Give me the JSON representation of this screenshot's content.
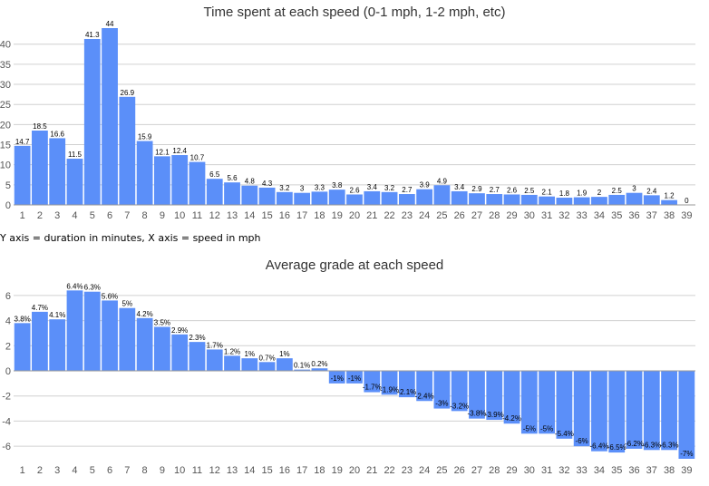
{
  "chart_data": [
    {
      "type": "bar",
      "title": "Time spent at each speed (0-1 mph, 1-2 mph, etc)",
      "categories": [
        "1",
        "2",
        "3",
        "4",
        "5",
        "6",
        "7",
        "8",
        "9",
        "10",
        "11",
        "12",
        "13",
        "14",
        "15",
        "16",
        "17",
        "18",
        "19",
        "20",
        "21",
        "22",
        "23",
        "24",
        "25",
        "26",
        "27",
        "28",
        "29",
        "30",
        "31",
        "32",
        "33",
        "34",
        "35",
        "36",
        "37",
        "38",
        "39"
      ],
      "values": [
        14.7,
        18.5,
        16.6,
        11.5,
        41.3,
        44,
        26.9,
        15.9,
        12.1,
        12.4,
        10.7,
        6.5,
        5.6,
        4.8,
        4.3,
        3.2,
        3,
        3.3,
        3.8,
        2.6,
        3.4,
        3.2,
        2.7,
        3.9,
        4.9,
        3.4,
        2.9,
        2.7,
        2.6,
        2.5,
        2.1,
        1.8,
        1.9,
        2,
        2.5,
        3,
        2.4,
        1.2,
        0
      ],
      "value_labels": [
        "14.7",
        "18.5",
        "16.6",
        "11.5",
        "41.3",
        "44",
        "26.9",
        "15.9",
        "12.1",
        "12.4",
        "10.7",
        "6.5",
        "5.6",
        "4.8",
        "4.3",
        "3.2",
        "3",
        "3.3",
        "3.8",
        "2.6",
        "3.4",
        "3.2",
        "2.7",
        "3.9",
        "4.9",
        "3.4",
        "2.9",
        "2.7",
        "2.6",
        "2.5",
        "2.1",
        "1.8",
        "1.9",
        "2",
        "2.5",
        "3",
        "2.4",
        "1.2",
        "0"
      ],
      "yticks": [
        "0",
        "5",
        "10",
        "15",
        "20",
        "25",
        "30",
        "35",
        "40"
      ],
      "ylim": [
        0,
        44
      ],
      "grid": true,
      "color": "#5b8ff9"
    },
    {
      "type": "bar",
      "title": "Average grade at each speed",
      "categories": [
        "1",
        "2",
        "3",
        "4",
        "5",
        "6",
        "7",
        "8",
        "9",
        "10",
        "11",
        "12",
        "13",
        "14",
        "15",
        "16",
        "17",
        "18",
        "19",
        "20",
        "21",
        "22",
        "23",
        "24",
        "25",
        "26",
        "27",
        "28",
        "29",
        "30",
        "31",
        "32",
        "33",
        "34",
        "35",
        "36",
        "37",
        "38",
        "39"
      ],
      "values": [
        3.8,
        4.7,
        4.1,
        6.4,
        6.3,
        5.6,
        5,
        4.2,
        3.5,
        2.9,
        2.3,
        1.7,
        1.2,
        1,
        0.7,
        1,
        0.1,
        0.2,
        -1,
        -1,
        -1.7,
        -1.9,
        -2.1,
        -2.4,
        -3,
        -3.2,
        -3.8,
        -3.9,
        -4.2,
        -5,
        -5,
        -5.4,
        -6,
        -6.4,
        -6.5,
        -6.2,
        -6.3,
        -6.3,
        -7
      ],
      "value_labels": [
        "3.8%",
        "4.7%",
        "4.1%",
        "6.4%",
        "6.3%",
        "5.6%",
        "5%",
        "4.2%",
        "3.5%",
        "2.9%",
        "2.3%",
        "1.7%",
        "1.2%",
        "1%",
        "0.7%",
        "1%",
        "0.1%",
        "0.2%",
        "-1%",
        "-1%",
        "-1.7%",
        "-1.9%",
        "-2.1%",
        "-2.4%",
        "-3%",
        "-3.2%",
        "-3.8%",
        "-3.9%",
        "-4.2%",
        "-5%",
        "-5%",
        "-5.4%",
        "-6%",
        "-6.4%",
        "-6.5%",
        "-6.2%",
        "-6.3%",
        "-6.3%",
        "-7%"
      ],
      "yticks": [
        "-6",
        "-4",
        "-2",
        "0",
        "2",
        "4",
        "6"
      ],
      "ylim": [
        -7,
        7
      ],
      "grid": true,
      "color": "#5b8ff9"
    }
  ],
  "caption": "Y axis = duration in minutes, X axis = speed in mph"
}
